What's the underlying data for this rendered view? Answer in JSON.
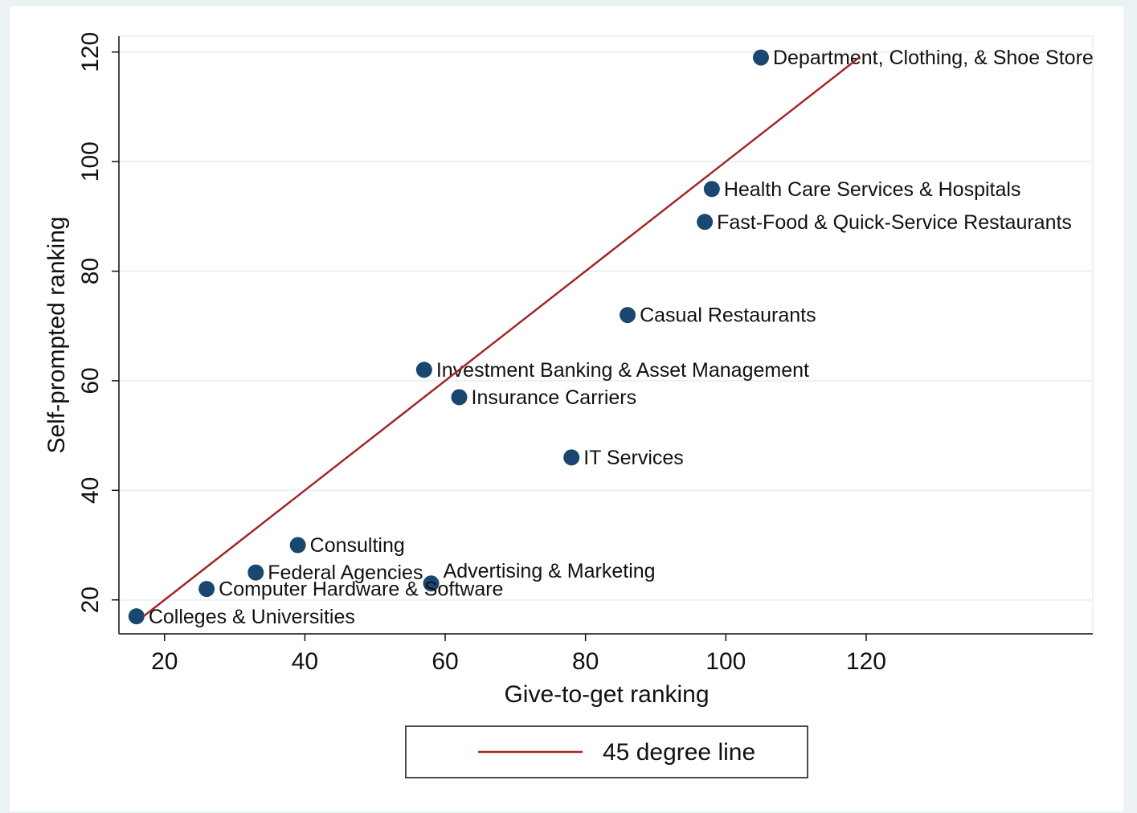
{
  "chart_data": {
    "type": "scatter",
    "xlabel": "Give-to-get ranking",
    "ylabel": "Self-prompted ranking",
    "xlim": [
      13.5,
      152.3
    ],
    "ylim": [
      13.8,
      122.9
    ],
    "xticks": [
      20,
      40,
      60,
      80,
      100,
      120
    ],
    "yticks": [
      20,
      40,
      60,
      80,
      100,
      120
    ],
    "grid": true,
    "legend": "bottom",
    "series": [
      {
        "type": "scatter",
        "color": "#1a476f",
        "x": [
          105,
          98,
          97,
          86,
          57,
          62,
          78,
          39,
          33,
          58,
          26,
          16
        ],
        "values": [
          119,
          95,
          89,
          72,
          62,
          57,
          46,
          30,
          25,
          23,
          22,
          17
        ],
        "labels": [
          "Department, Clothing, & Shoe Store",
          "Health Care Services & Hospitals",
          "Fast-Food & Quick-Service Restaurants",
          "Casual Restaurants",
          "Investment Banking & Asset Management",
          "Insurance Carriers",
          "IT Services",
          "Consulting",
          "Federal Agencies",
          "Advertising & Marketing",
          "Computer Hardware & Software",
          "Colleges & Universities"
        ]
      },
      {
        "type": "line",
        "name": "45 degree line",
        "color": "#a0282a",
        "x": [
          17,
          119
        ],
        "values": [
          17,
          119
        ]
      }
    ]
  }
}
